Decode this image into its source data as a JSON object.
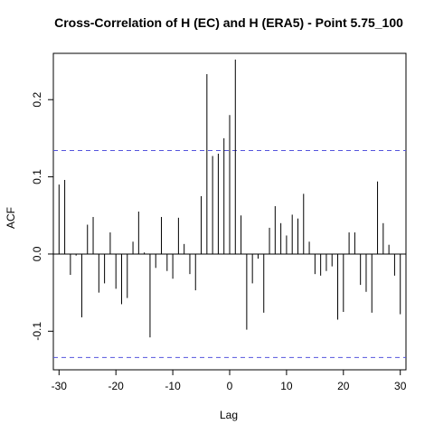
{
  "chart_data": {
    "type": "bar",
    "title": "Cross-Correlation of H (EC) and H (ERA5) - Point 5.75_100",
    "xlabel": "Lag",
    "ylabel": "ACF",
    "xlim": [
      -31,
      31
    ],
    "ylim": [
      -0.15,
      0.26
    ],
    "x_ticks": [
      -30,
      -20,
      -10,
      0,
      10,
      20,
      30
    ],
    "y_ticks": [
      -0.1,
      0.0,
      0.1,
      0.2
    ],
    "x_tick_labels": [
      "-30",
      "-20",
      "-10",
      "0",
      "10",
      "20",
      "30"
    ],
    "y_tick_labels": [
      "-0.1",
      "0.0",
      "0.1",
      "0.2"
    ],
    "confidence_limits": [
      0.134,
      -0.134
    ],
    "colors": {
      "spikes": "#000000",
      "confidence": "#5555dd",
      "zero_line": "#000000",
      "frame": "#000000"
    },
    "lags": [
      -30,
      -29,
      -28,
      -27,
      -26,
      -25,
      -24,
      -23,
      -22,
      -21,
      -20,
      -19,
      -18,
      -17,
      -16,
      -15,
      -14,
      -13,
      -12,
      -11,
      -10,
      -9,
      -8,
      -7,
      -6,
      -5,
      -4,
      -3,
      -2,
      -1,
      0,
      1,
      2,
      3,
      4,
      5,
      6,
      7,
      8,
      9,
      10,
      11,
      12,
      13,
      14,
      15,
      16,
      17,
      18,
      19,
      20,
      21,
      22,
      23,
      24,
      25,
      26,
      27,
      28,
      29,
      30
    ],
    "values": [
      0.09,
      0.096,
      -0.027,
      -0.002,
      -0.082,
      0.038,
      0.048,
      -0.05,
      -0.038,
      0.028,
      -0.045,
      -0.065,
      -0.057,
      0.016,
      0.055,
      0.002,
      -0.108,
      -0.018,
      0.048,
      -0.022,
      -0.032,
      0.047,
      0.013,
      -0.026,
      -0.047,
      0.075,
      0.233,
      0.127,
      0.13,
      0.15,
      0.18,
      0.252,
      0.05,
      -0.098,
      -0.038,
      -0.006,
      -0.076,
      0.034,
      0.062,
      0.04,
      0.024,
      0.051,
      0.046,
      0.078,
      0.016,
      -0.026,
      -0.028,
      -0.022,
      -0.016,
      -0.085,
      -0.075,
      0.028,
      0.028,
      -0.04,
      -0.049,
      -0.076,
      0.094,
      0.04,
      0.012,
      -0.028,
      -0.078
    ]
  }
}
